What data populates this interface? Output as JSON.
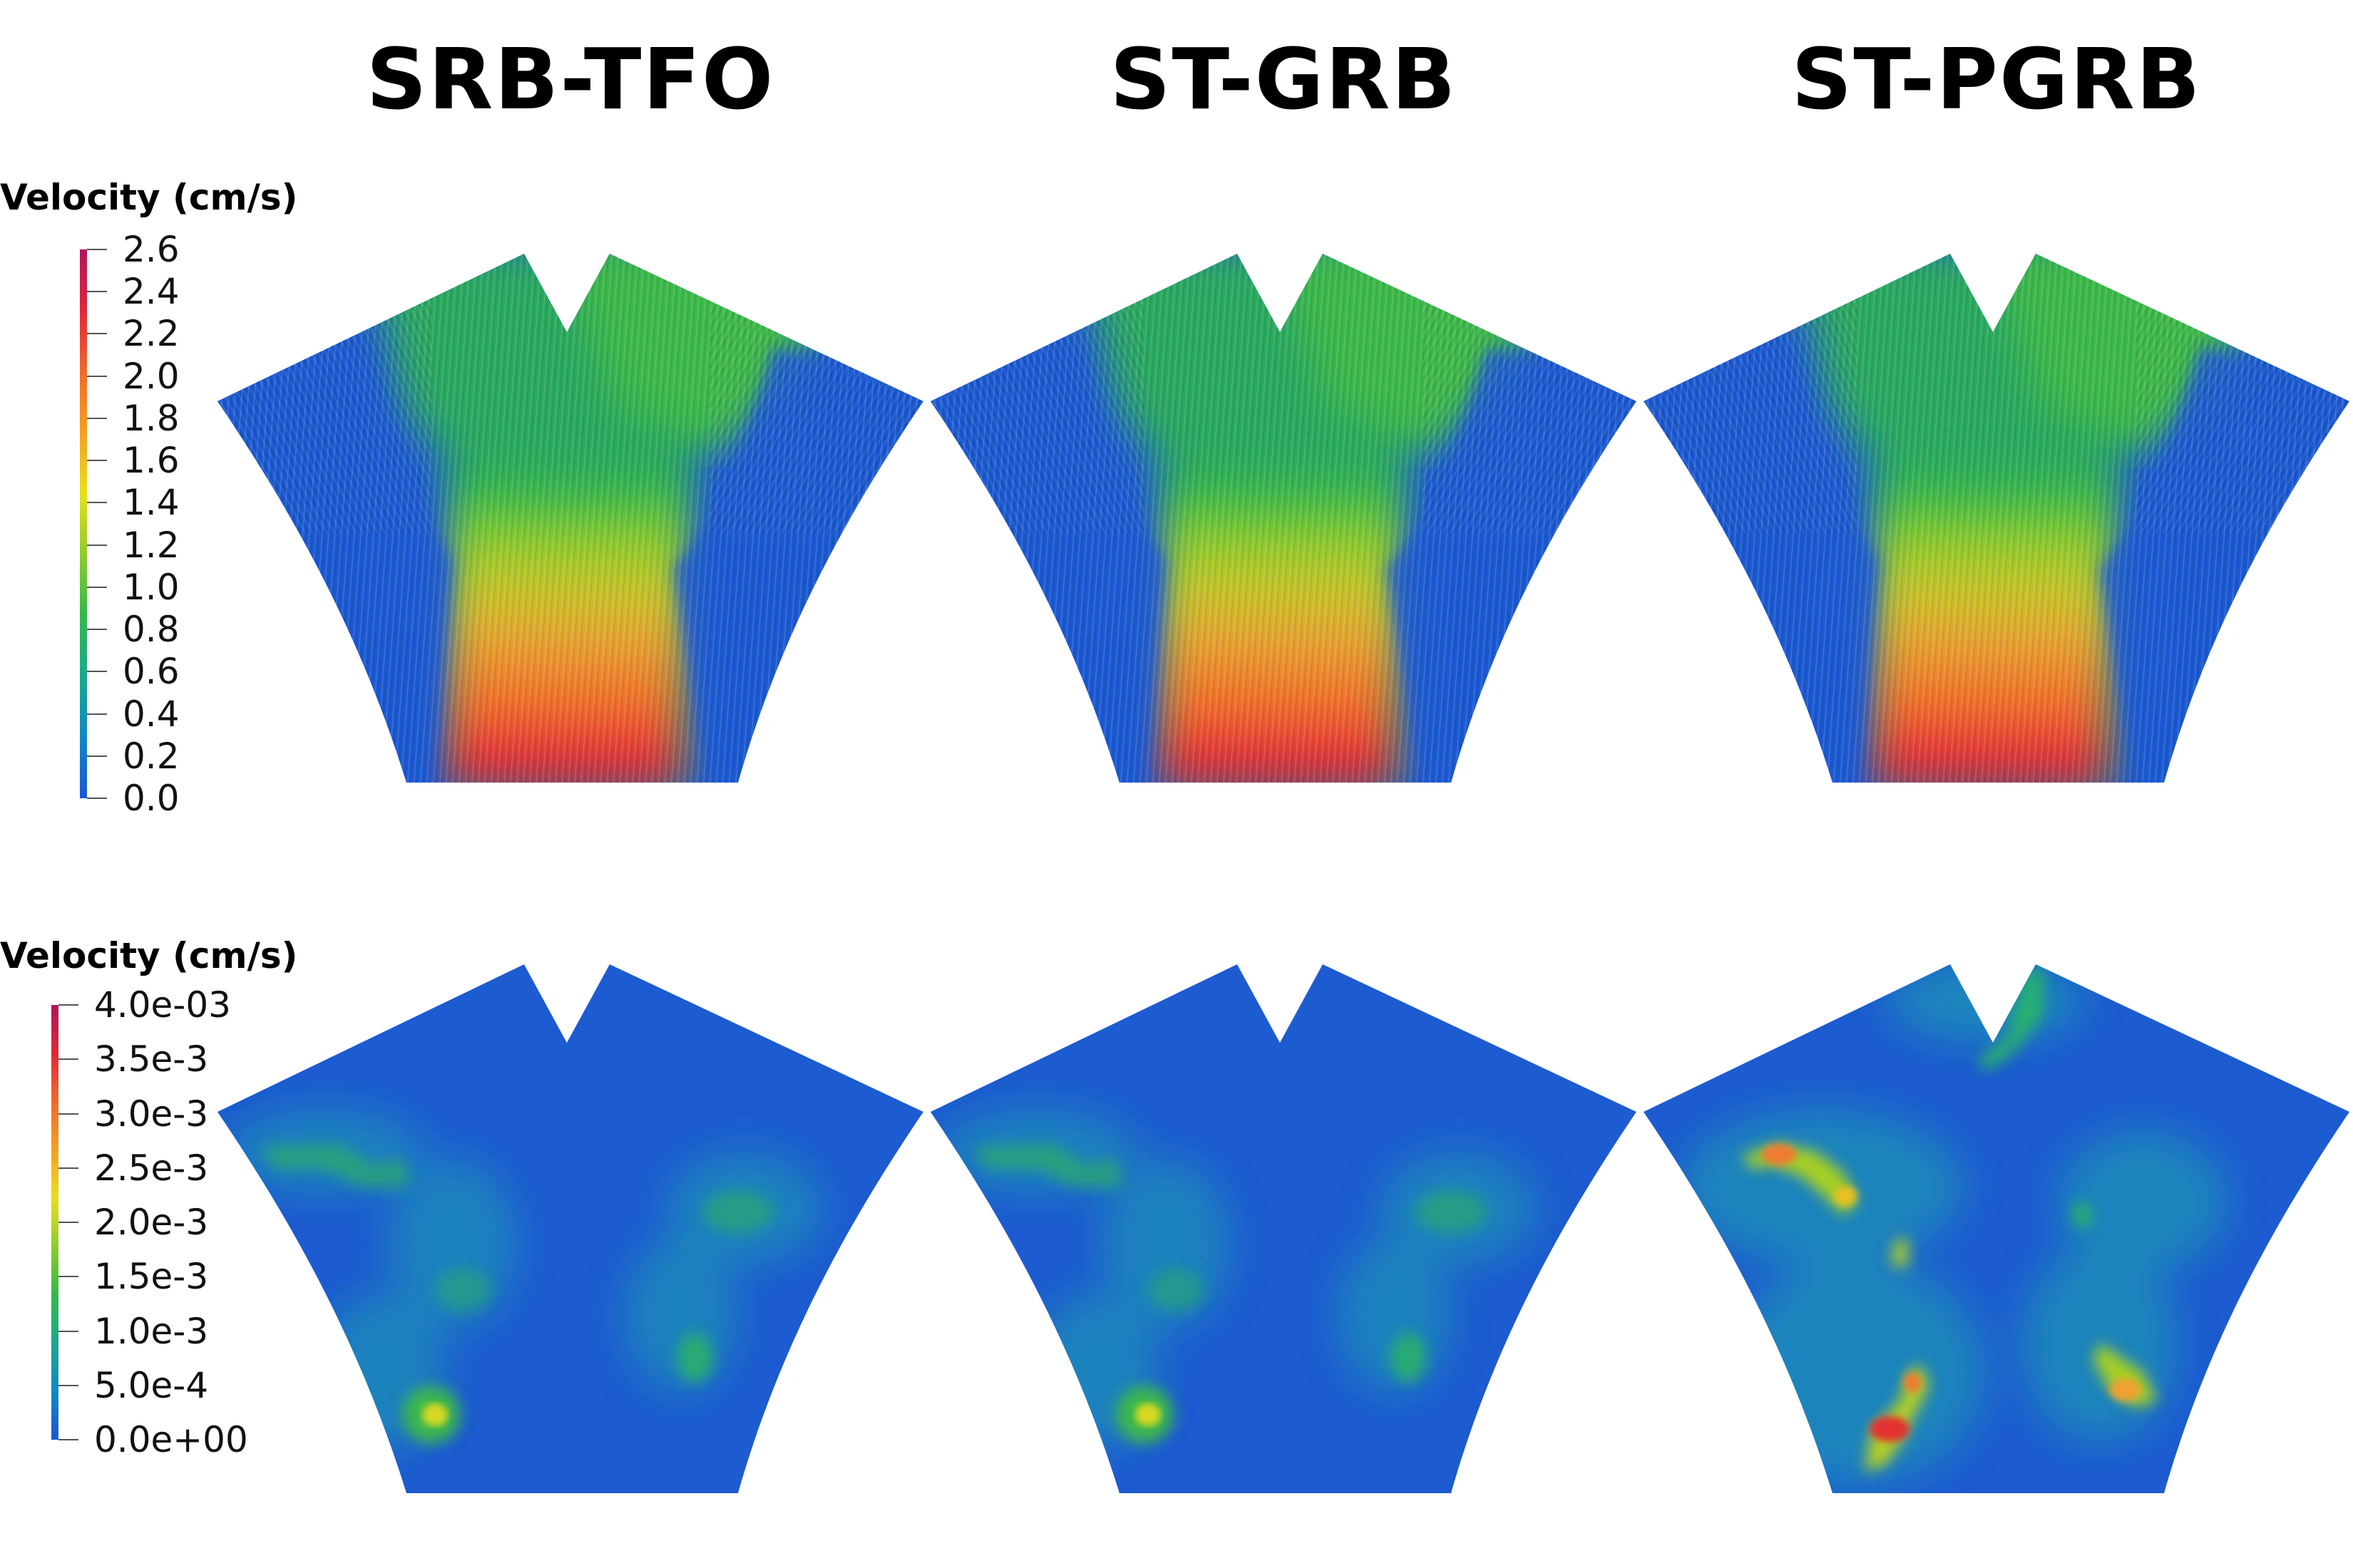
{
  "columns": [
    {
      "title": "SRB-TFO"
    },
    {
      "title": "ST-GRB"
    },
    {
      "title": "ST-PGRB"
    }
  ],
  "rows": [
    {
      "legend_title": "Velocity (cm/s)",
      "colorbar_ticks": [
        "2.6",
        "2.4",
        "2.2",
        "2.0",
        "1.8",
        "1.6",
        "1.4",
        "1.2",
        "1.0",
        "0.8",
        "0.6",
        "0.4",
        "0.2",
        "0.0"
      ],
      "colormap": [
        "#1a55d9",
        "#0f89c4",
        "#19a98f",
        "#33b84a",
        "#8fcc2a",
        "#e8e01a",
        "#f5a020",
        "#f06a2a",
        "#e2263a",
        "#b0155c"
      ]
    },
    {
      "legend_title": "Velocity (cm/s)",
      "colorbar_ticks": [
        "4.0e-03",
        "3.5e-3",
        "3.0e-3",
        "2.5e-3",
        "2.0e-3",
        "1.5e-3",
        "1.0e-3",
        "5.0e-4",
        "0.0e+00"
      ],
      "colormap": [
        "#1a55d9",
        "#0f89c4",
        "#19a98f",
        "#33b84a",
        "#8fcc2a",
        "#e8e01a",
        "#f5a020",
        "#f06a2a",
        "#e2263a",
        "#b0155c"
      ]
    }
  ]
}
